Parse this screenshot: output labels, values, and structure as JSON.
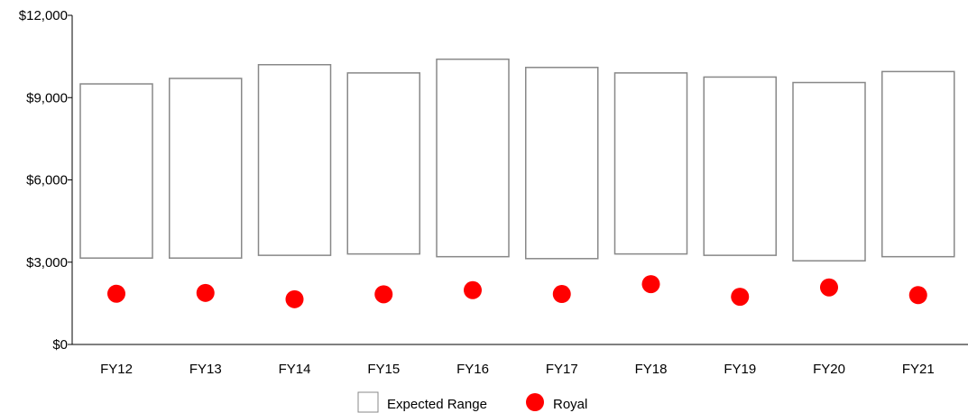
{
  "chart_data": {
    "type": "bar",
    "categories": [
      "FY12",
      "FY13",
      "FY14",
      "FY15",
      "FY16",
      "FY17",
      "FY18",
      "FY19",
      "FY20",
      "FY21"
    ],
    "series": [
      {
        "name": "Expected Range",
        "kind": "floating-bar",
        "low": [
          3150,
          3150,
          3250,
          3300,
          3200,
          3130,
          3300,
          3250,
          3050,
          3200
        ],
        "high": [
          9500,
          9700,
          10200,
          9900,
          10400,
          10100,
          9900,
          9750,
          9550,
          9950
        ],
        "color": "#ffffff",
        "stroke": "#888888"
      },
      {
        "name": "Royal",
        "kind": "dot",
        "values": [
          1850,
          1880,
          1650,
          1830,
          1980,
          1840,
          2200,
          1740,
          2080,
          1800
        ],
        "color": "#ff0000"
      }
    ],
    "title": "",
    "xlabel": "",
    "ylabel": "",
    "ylim": [
      0,
      12000
    ],
    "yticks": [
      0,
      3000,
      6000,
      9000,
      12000
    ],
    "ytick_labels": [
      "$0",
      "$3,000",
      "$6,000",
      "$9,000",
      "$12,000"
    ],
    "grid": false,
    "legend_position": "bottom-center"
  }
}
